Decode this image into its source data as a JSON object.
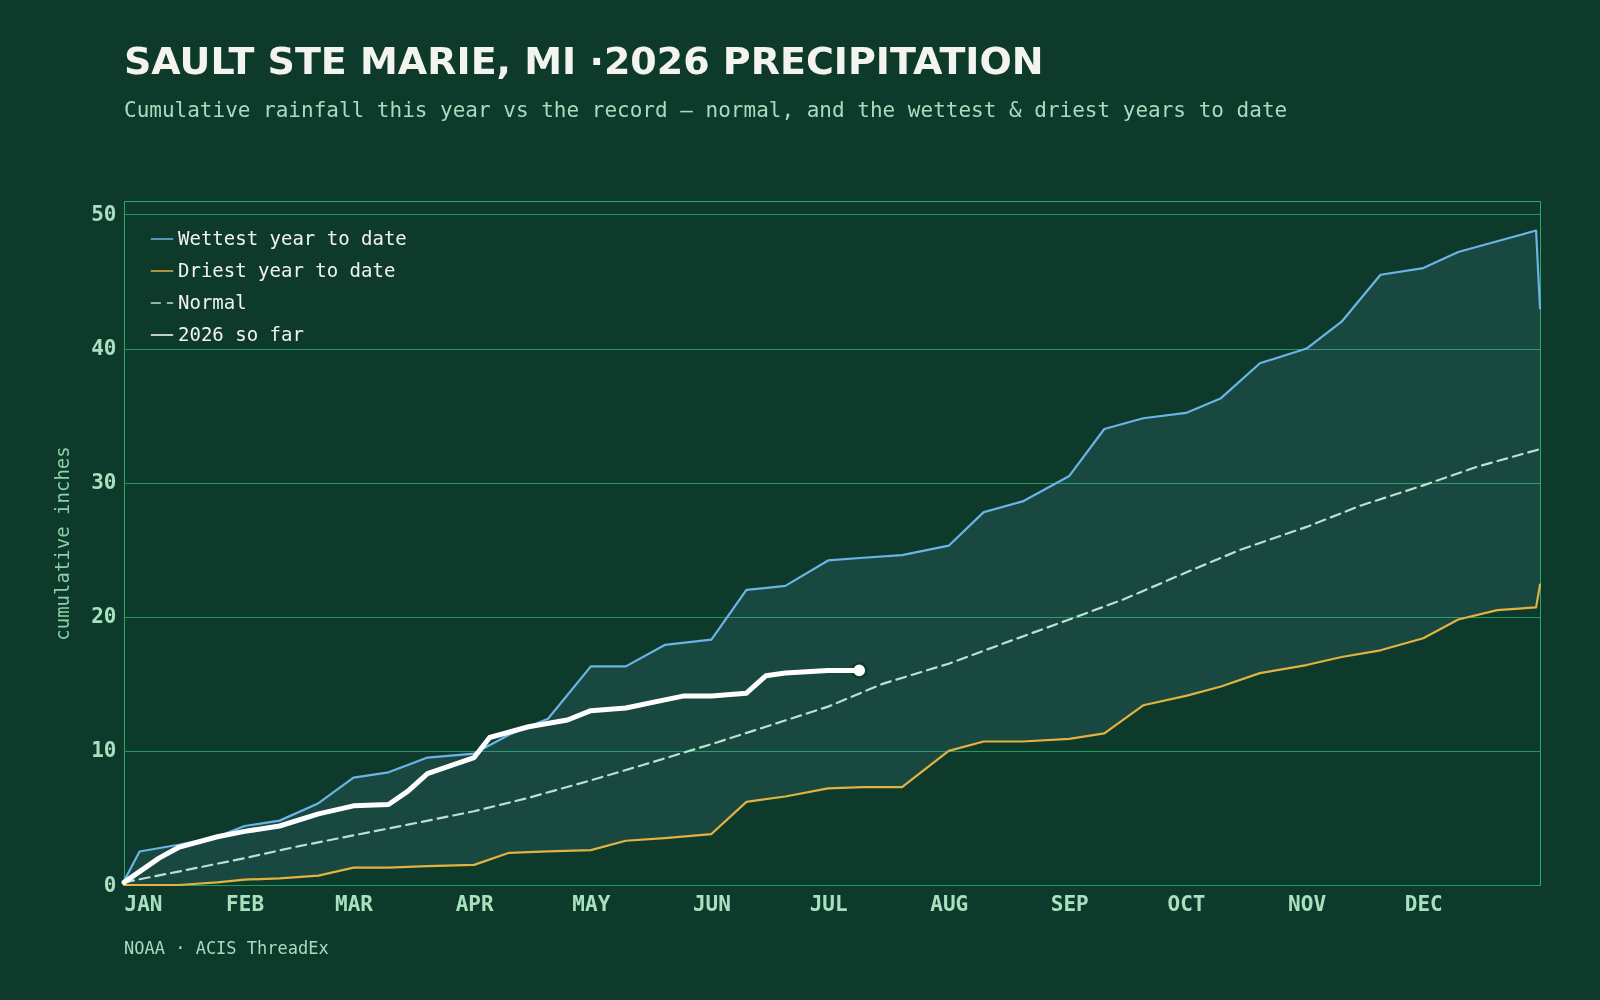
{
  "chart_data": {
    "type": "line",
    "title": "SAULT STE MARIE, MI ·2026 PRECIPITATION",
    "subtitle": "Cumulative rainfall this year vs the record — normal, and the wettest & driest years to date",
    "ylabel": "cumulative inches",
    "x": [
      "--01-01",
      "--01-05",
      "--01-15",
      "--01-25",
      "--02-01",
      "--02-10",
      "--02-20",
      "--03-01",
      "--03-10",
      "--03-20",
      "--04-01",
      "--04-10",
      "--04-20",
      "--05-01",
      "--05-10",
      "--05-20",
      "--06-01",
      "--06-10",
      "--06-20",
      "--07-01",
      "--07-10",
      "--07-20",
      "--08-01",
      "--08-10",
      "--08-20",
      "--09-01",
      "--09-10",
      "--09-20",
      "--10-01",
      "--10-10",
      "--10-20",
      "--11-01",
      "--11-10",
      "--11-20",
      "--12-01",
      "--12-10",
      "--12-20",
      "--12-30",
      "--12-31"
    ],
    "xlim": [
      "--01-01",
      "--12-31"
    ],
    "xticks": [
      {
        "value": "--01-01",
        "label": "JAN"
      },
      {
        "value": "--02-01",
        "label": "FEB"
      },
      {
        "value": "--03-01",
        "label": "MAR"
      },
      {
        "value": "--04-01",
        "label": "APR"
      },
      {
        "value": "--05-01",
        "label": "MAY"
      },
      {
        "value": "--06-01",
        "label": "JUN"
      },
      {
        "value": "--07-01",
        "label": "JUL"
      },
      {
        "value": "--08-01",
        "label": "AUG"
      },
      {
        "value": "--09-01",
        "label": "SEP"
      },
      {
        "value": "--10-01",
        "label": "OCT"
      },
      {
        "value": "--11-01",
        "label": "NOV"
      },
      {
        "value": "--12-01",
        "label": "DEC"
      }
    ],
    "ylim": [
      0,
      51
    ],
    "yticks": [
      0,
      10,
      20,
      30,
      40,
      50
    ],
    "grid": "y",
    "legend": "top left",
    "annotations": [
      "NOAA · ACIS ThreadEx"
    ],
    "series": [
      {
        "name": "Wettest year to date",
        "color": "#6cb4e8",
        "line_style": "solid",
        "lower": [
          0,
          0,
          0,
          0.2,
          0.4,
          0.5,
          0.7,
          1.3,
          1.3,
          1.4,
          1.5,
          2.4,
          2.5,
          2.6,
          3.3,
          3.5,
          3.8,
          6.2,
          6.6,
          7.2,
          7.3,
          7.3,
          10.0,
          10.7,
          10.7,
          10.9,
          11.3,
          13.4,
          14.1,
          14.8,
          15.8,
          16.4,
          17.0,
          17.5,
          18.4,
          19.8,
          20.5,
          20.7,
          22.4
        ],
        "upper": [
          0.3,
          2.5,
          3.0,
          3.6,
          4.4,
          4.8,
          6.1,
          8.0,
          8.4,
          9.5,
          9.8,
          11.2,
          12.4,
          16.3,
          16.3,
          17.9,
          18.3,
          22.0,
          22.3,
          24.2,
          24.4,
          24.6,
          25.3,
          27.8,
          28.6,
          30.5,
          34.0,
          34.8,
          35.2,
          36.3,
          38.9,
          40.0,
          42.0,
          45.5,
          46.0,
          47.2,
          48.0,
          48.8,
          43.0
        ],
        "values": [
          0.3,
          2.5,
          3.0,
          3.6,
          4.4,
          4.8,
          6.1,
          8.0,
          8.4,
          9.5,
          9.8,
          11.2,
          12.4,
          16.3,
          16.3,
          17.9,
          18.3,
          22.0,
          22.3,
          24.2,
          24.4,
          24.6,
          25.3,
          27.8,
          28.6,
          30.5,
          34.0,
          34.8,
          35.2,
          36.3,
          38.9,
          40.0,
          42.0,
          45.5,
          46.0,
          47.2,
          48.0,
          48.8,
          43.0
        ]
      },
      {
        "name": "Driest year to date",
        "color": "#e2b341",
        "line_style": "solid",
        "values": [
          0,
          0,
          0,
          0.2,
          0.4,
          0.5,
          0.7,
          1.3,
          1.3,
          1.4,
          1.5,
          2.4,
          2.5,
          2.6,
          3.3,
          3.5,
          3.8,
          6.2,
          6.6,
          7.2,
          7.3,
          7.3,
          10.0,
          10.7,
          10.7,
          10.9,
          11.3,
          13.4,
          14.1,
          14.8,
          15.8,
          16.4,
          17.0,
          17.5,
          18.4,
          19.8,
          20.5,
          20.7,
          22.4
        ]
      },
      {
        "name": "Normal",
        "color": "#bfe0cc",
        "line_style": "dashed",
        "x": [
          "--01-01",
          "--01-15",
          "--02-01",
          "--02-15",
          "--03-01",
          "--03-15",
          "--04-01",
          "--04-15",
          "--05-01",
          "--05-15",
          "--06-01",
          "--06-15",
          "--07-01",
          "--07-15",
          "--08-01",
          "--08-15",
          "--09-01",
          "--09-15",
          "--10-01",
          "--10-15",
          "--11-01",
          "--11-15",
          "--12-01",
          "--12-15",
          "--12-31"
        ],
        "values": [
          0.2,
          1.0,
          2.0,
          2.9,
          3.7,
          4.5,
          5.5,
          6.5,
          7.8,
          9.0,
          10.5,
          11.8,
          13.3,
          15.0,
          16.5,
          18.0,
          19.8,
          21.3,
          23.3,
          25.0,
          26.7,
          28.3,
          29.8,
          31.2,
          32.5
        ]
      },
      {
        "name": "2026 so far",
        "color": "#ffffff",
        "line_style": "solid",
        "x": [
          "--01-01",
          "--01-05",
          "--01-10",
          "--01-15",
          "--01-25",
          "--02-01",
          "--02-10",
          "--02-20",
          "--03-01",
          "--03-10",
          "--03-15",
          "--03-20",
          "--04-01",
          "--04-05",
          "--04-15",
          "--04-25",
          "--05-01",
          "--05-10",
          "--05-20",
          "--05-25",
          "--06-01",
          "--06-10",
          "--06-15",
          "--06-20",
          "--07-01",
          "--07-09"
        ],
        "values": [
          0.2,
          1.0,
          2.0,
          2.8,
          3.6,
          4.0,
          4.4,
          5.3,
          5.9,
          6.0,
          7.0,
          8.3,
          9.5,
          11.0,
          11.8,
          12.3,
          13.0,
          13.2,
          13.8,
          14.1,
          14.1,
          14.3,
          15.6,
          15.8,
          16.0,
          16.0
        ]
      },
      {
        "type": "scatter",
        "color": "#ffffff",
        "marker": "circle",
        "x": [
          "--07-09"
        ],
        "values": [
          16.0
        ]
      }
    ]
  }
}
